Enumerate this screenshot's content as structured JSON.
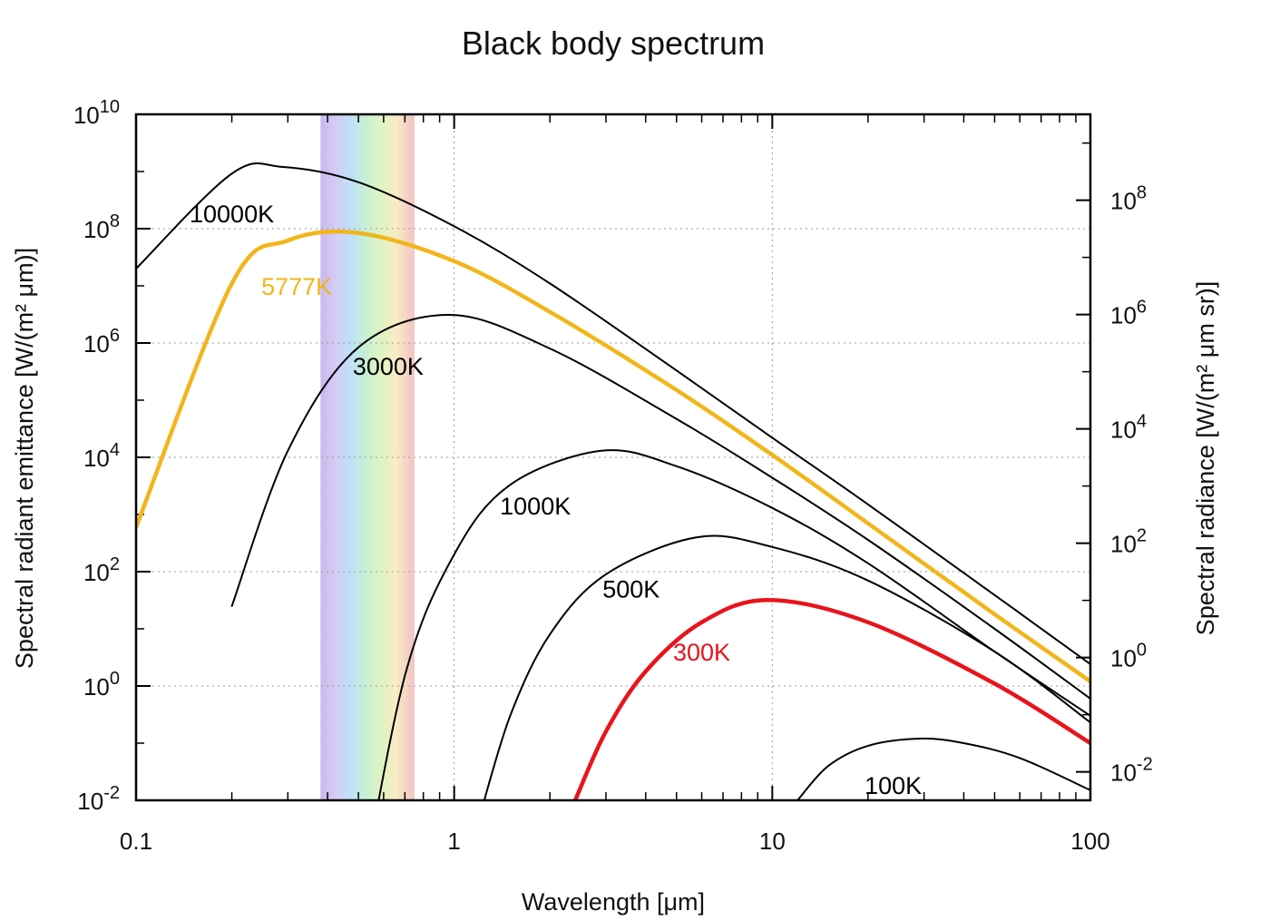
{
  "chart_data": {
    "type": "line",
    "title": "Black body spectrum",
    "xlabel": "Wavelength [μm]",
    "ylabel": "Spectral radiant emittance [W/(m² μm)]",
    "y2label": "Spectral radiance [W/(m² μm sr)]",
    "x_scale": "log",
    "y_scale": "log",
    "xlim": [
      0.1,
      100
    ],
    "ylim": [
      0.01,
      10000000000
    ],
    "y2lim": [
      0.00318,
      3180000000
    ],
    "grid": true,
    "x_ticks": [
      {
        "value": 0.1,
        "label": "0.1"
      },
      {
        "value": 1,
        "label": "1"
      },
      {
        "value": 10,
        "label": "10"
      },
      {
        "value": 100,
        "label": "100"
      }
    ],
    "y_ticks": [
      {
        "value": 0.01,
        "base": "10",
        "exp": "-2"
      },
      {
        "value": 1,
        "base": "10",
        "exp": "0"
      },
      {
        "value": 100,
        "base": "10",
        "exp": "2"
      },
      {
        "value": 10000,
        "base": "10",
        "exp": "4"
      },
      {
        "value": 1000000,
        "base": "10",
        "exp": "6"
      },
      {
        "value": 100000000,
        "base": "10",
        "exp": "8"
      },
      {
        "value": 10000000000,
        "base": "10",
        "exp": "10"
      }
    ],
    "y2_ticks": [
      {
        "value": 0.01,
        "base": "10",
        "exp": "-2"
      },
      {
        "value": 1,
        "base": "10",
        "exp": "0"
      },
      {
        "value": 100,
        "base": "10",
        "exp": "2"
      },
      {
        "value": 10000,
        "base": "10",
        "exp": "4"
      },
      {
        "value": 1000000,
        "base": "10",
        "exp": "6"
      },
      {
        "value": 100000000,
        "base": "10",
        "exp": "8"
      }
    ],
    "visible_band": {
      "from": 0.38,
      "to": 0.75
    },
    "series": [
      {
        "name": "10000K",
        "temperature": 10000,
        "color": "#000000",
        "label_at": [
          0.2,
          130000000.0
        ],
        "x": [
          0.1,
          0.2,
          0.29,
          0.5,
          1,
          2,
          5,
          10,
          20,
          50,
          100
        ],
        "y": [
          20000000.0,
          920000000.0,
          1200000000.0,
          650000000.0,
          110000000.0,
          11000000.0,
          330000.0,
          22000.0,
          1500.0,
          39.0,
          2.4
        ]
      },
      {
        "name": "5777K",
        "temperature": 5777,
        "color": "#f2b51c",
        "label_at": [
          0.32,
          7000000.0
        ],
        "x": [
          0.1,
          0.2,
          0.3,
          0.5,
          1,
          2,
          5,
          10,
          20,
          50,
          100
        ],
        "y": [
          600.0,
          11000000.0,
          62000000.0,
          84000000.0,
          27000000.0,
          3500000.0,
          150000.0,
          11000.0,
          700.0,
          18.0,
          1.2
        ]
      },
      {
        "name": "3000K",
        "temperature": 3000,
        "color": "#000000",
        "label_at": [
          0.62,
          280000.0
        ],
        "x": [
          0.2,
          0.3,
          0.5,
          0.97,
          2,
          5,
          10,
          20,
          50,
          100
        ],
        "y": [
          25.0,
          13000.0,
          840000.0,
          3100000.0,
          800000.0,
          47000.0,
          4400.0,
          360.0,
          10.0,
          0.6
        ]
      },
      {
        "name": "1000K",
        "temperature": 1000,
        "color": "#000000",
        "label_at": [
          1.8,
          1000.0
        ],
        "x": [
          0.5,
          0.7,
          1,
          1.5,
          2.9,
          5,
          10,
          20,
          50,
          100
        ],
        "y": [
          0.00012,
          1.5,
          200.0,
          3300.0,
          13000.0,
          7000.0,
          1300.0,
          140.0,
          4.0,
          0.3
        ]
      },
      {
        "name": "500K",
        "temperature": 500,
        "color": "#000000",
        "label_at": [
          3.6,
          35.0
        ],
        "x": [
          1.2,
          1.5,
          2,
          3,
          5.8,
          10,
          20,
          50,
          100
        ],
        "y": [
          0.005,
          0.3,
          8.0,
          90.0,
          400.0,
          270.0,
          70.0,
          4.0,
          0.23
        ]
      },
      {
        "name": "300K",
        "temperature": 300,
        "color": "#e8141b",
        "label_at": [
          6,
          2.8
        ],
        "x": [
          2.4,
          3,
          4,
          6,
          9.7,
          20,
          50,
          100
        ],
        "y": [
          0.01,
          0.16,
          1.8,
          13.0,
          32.0,
          13.0,
          1.1,
          0.1
        ],
        "thick": true
      },
      {
        "name": "100K",
        "temperature": 100,
        "color": "#000000",
        "label_at": [
          24,
          0.013
        ],
        "x": [
          12,
          15,
          20,
          29,
          40,
          60,
          100
        ],
        "y": [
          0.01,
          0.04,
          0.09,
          0.12,
          0.1,
          0.055,
          0.015
        ]
      }
    ]
  }
}
